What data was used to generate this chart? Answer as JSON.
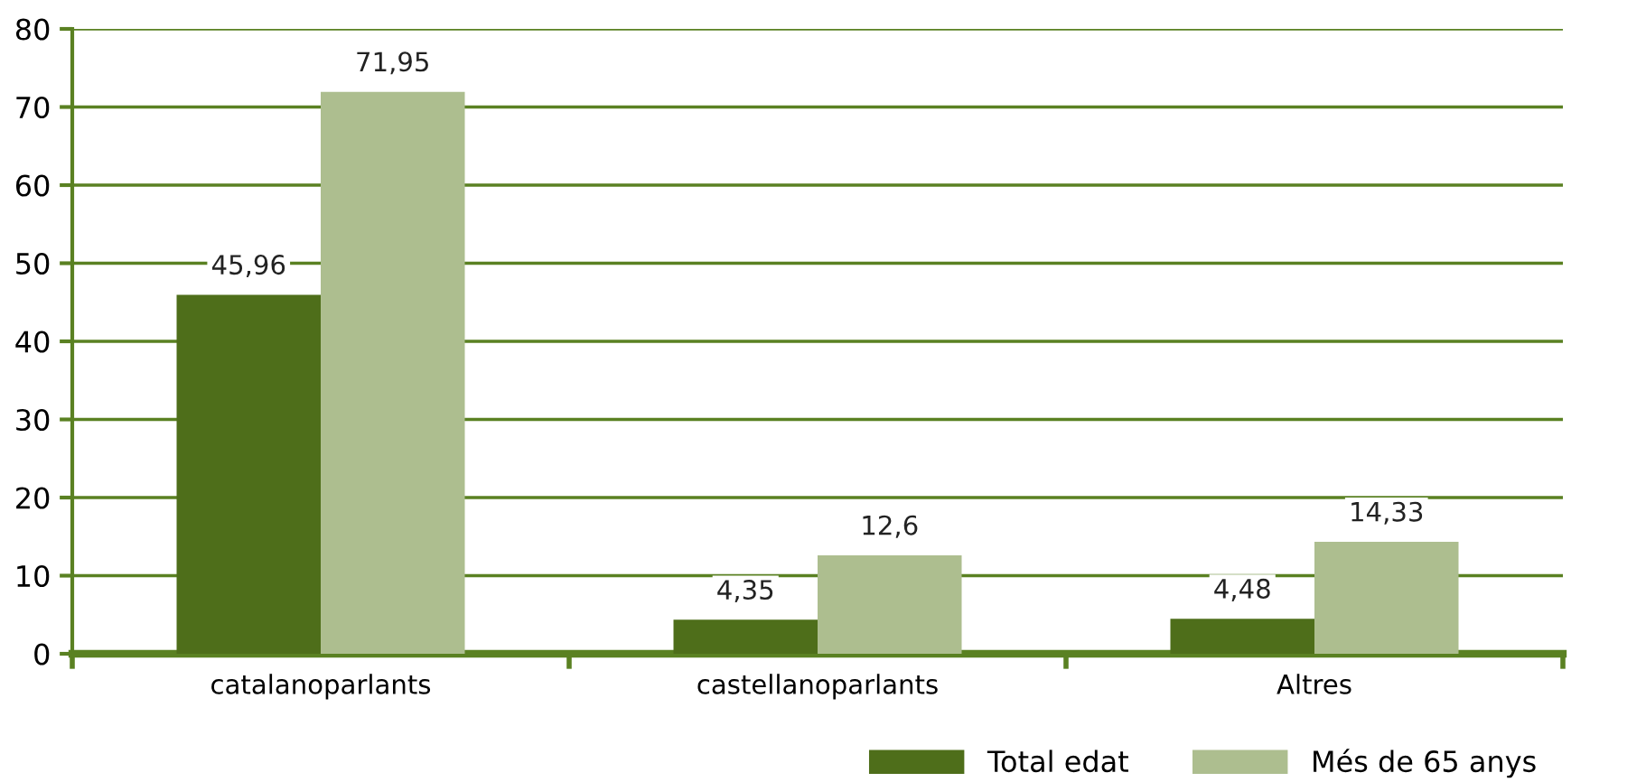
{
  "chart_data": {
    "type": "bar",
    "categories": [
      "catalanoparlants",
      "castellanoparlants",
      "Altres"
    ],
    "series": [
      {
        "name": "Total edat",
        "color": "#4e6e1a",
        "values": [
          45.96,
          4.35,
          4.48
        ],
        "value_labels": [
          "45,96",
          "4,35",
          "4,48"
        ]
      },
      {
        "name": "Més de 65 anys",
        "color": "#adbe8f",
        "values": [
          71.95,
          12.6,
          14.33
        ],
        "value_labels": [
          "71,95",
          "12,6",
          "14,33"
        ]
      }
    ],
    "ylim": [
      0,
      80
    ],
    "yticks": [
      0,
      10,
      20,
      30,
      40,
      50,
      60,
      70,
      80
    ],
    "grid": "y",
    "legend": "bottom right"
  }
}
